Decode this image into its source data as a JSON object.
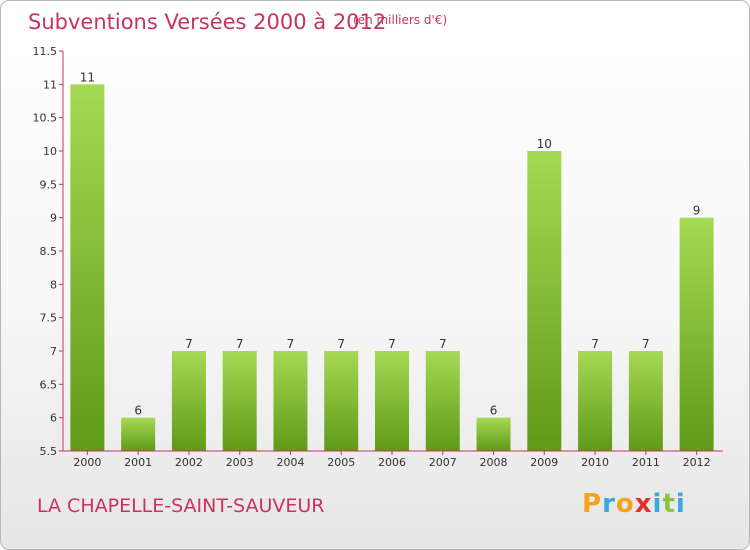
{
  "header": {
    "title": "Subventions Versées 2000 à 2012",
    "subtitle": "(en milliers d'€)"
  },
  "footer": {
    "commune": "LA CHAPELLE-SAINT-SAUVEUR",
    "logo_letters": [
      "P",
      "r",
      "o",
      "x",
      "i",
      "t",
      "i"
    ],
    "logo_colors": [
      "#f7a21b",
      "#3aa7df",
      "#f7a21b",
      "#e52d27",
      "#3aa7df",
      "#8cc63f",
      "#3aa7df"
    ]
  },
  "colors": {
    "bar_top": "#a6d954",
    "bar_bottom": "#5f9a18",
    "axis": "#c8345f",
    "title": "#c8345f"
  },
  "chart_data": {
    "type": "bar",
    "categories": [
      "2000",
      "2001",
      "2002",
      "2003",
      "2004",
      "2005",
      "2006",
      "2007",
      "2008",
      "2009",
      "2010",
      "2011",
      "2012"
    ],
    "values": [
      11,
      6,
      7,
      7,
      7,
      7,
      7,
      7,
      6,
      10,
      7,
      7,
      9
    ],
    "title": "Subventions Versées 2000 à 2012",
    "subtitle": "(en milliers d'€)",
    "xlabel": "",
    "ylabel": "",
    "ylim": [
      5.5,
      11.5
    ],
    "yticks": [
      "5.5",
      "6",
      "6.5",
      "7",
      "7.5",
      "8",
      "8.5",
      "9",
      "9.5",
      "10",
      "10.5",
      "11",
      "11.5"
    ],
    "grid": false,
    "legend": "none"
  }
}
